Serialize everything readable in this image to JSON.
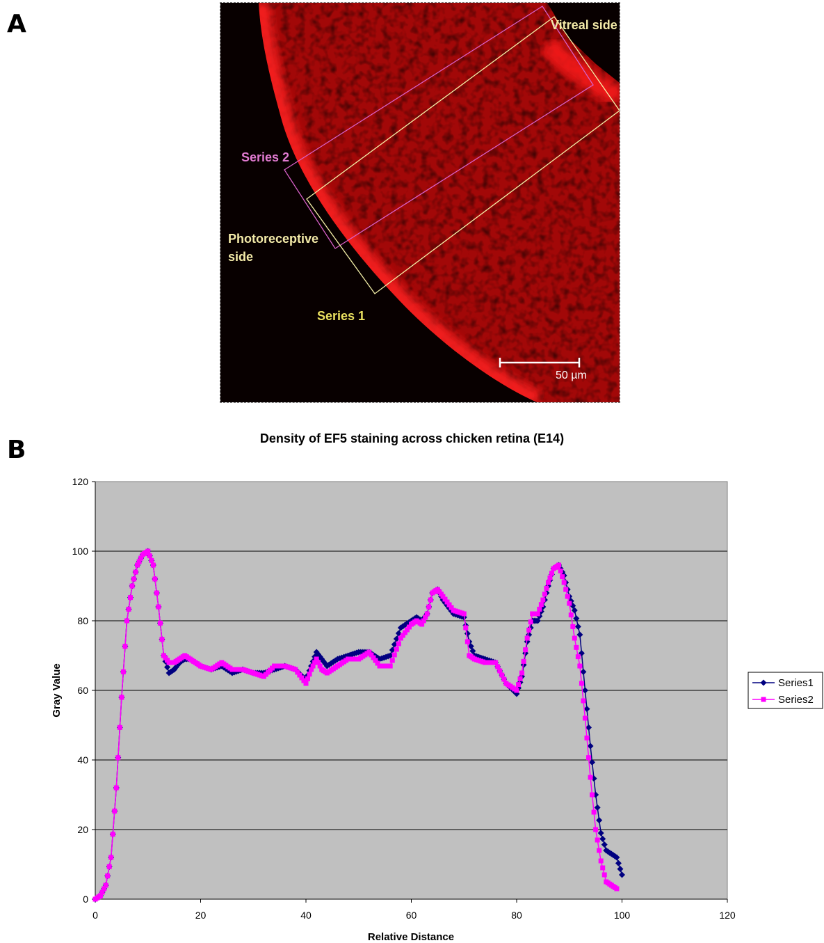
{
  "panels": {
    "a_letter": "A",
    "b_letter": "B"
  },
  "micrograph": {
    "label_vitreal": "Vitreal side",
    "label_series2": "Series 2",
    "label_photoreceptive_line1": "Photoreceptive",
    "label_photoreceptive_line2": "side",
    "label_series1": "Series 1",
    "scale_bar_label": "50 µm",
    "colors": {
      "stain": "#e01010",
      "background": "#080000",
      "box_series1": "#f4f0a8",
      "box_series2": "#d860c8"
    }
  },
  "chart_data": {
    "type": "line",
    "title": "Density of EF5 staining across chicken retina (E14)",
    "xlabel": "Relative Distance",
    "ylabel": "Gray Value",
    "xlim": [
      0,
      120
    ],
    "ylim": [
      0,
      120
    ],
    "xticks": [
      "0",
      "20",
      "40",
      "60",
      "80",
      "100",
      "120"
    ],
    "yticks": [
      "0",
      "20",
      "40",
      "60",
      "80",
      "100",
      "120"
    ],
    "grid": "horizontal",
    "plot_background": "#c0c0c0",
    "legend_position": "right",
    "series": [
      {
        "name": "Series1",
        "color": "#000080",
        "marker": "diamond",
        "points": [
          [
            0,
            0
          ],
          [
            1,
            1
          ],
          [
            2,
            4
          ],
          [
            3,
            12
          ],
          [
            4,
            32
          ],
          [
            5,
            58
          ],
          [
            6,
            80
          ],
          [
            7,
            90
          ],
          [
            8,
            96
          ],
          [
            9,
            99
          ],
          [
            10,
            100
          ],
          [
            11,
            96
          ],
          [
            12,
            84
          ],
          [
            13,
            70
          ],
          [
            14,
            65
          ],
          [
            15,
            66
          ],
          [
            16,
            68
          ],
          [
            17,
            69
          ],
          [
            18,
            69
          ],
          [
            19,
            68
          ],
          [
            20,
            67
          ],
          [
            22,
            66
          ],
          [
            24,
            67
          ],
          [
            26,
            65
          ],
          [
            28,
            66
          ],
          [
            30,
            65
          ],
          [
            32,
            65
          ],
          [
            34,
            66
          ],
          [
            36,
            67
          ],
          [
            38,
            66
          ],
          [
            40,
            63
          ],
          [
            41,
            67
          ],
          [
            42,
            71
          ],
          [
            43,
            69
          ],
          [
            44,
            67
          ],
          [
            46,
            69
          ],
          [
            48,
            70
          ],
          [
            50,
            71
          ],
          [
            52,
            71
          ],
          [
            54,
            69
          ],
          [
            56,
            70
          ],
          [
            58,
            78
          ],
          [
            60,
            80
          ],
          [
            61,
            81
          ],
          [
            62,
            80
          ],
          [
            63,
            82
          ],
          [
            64,
            88
          ],
          [
            65,
            89
          ],
          [
            66,
            86
          ],
          [
            68,
            82
          ],
          [
            70,
            81
          ],
          [
            71,
            74
          ],
          [
            72,
            70
          ],
          [
            74,
            69
          ],
          [
            76,
            68
          ],
          [
            78,
            62
          ],
          [
            80,
            59
          ],
          [
            81,
            64
          ],
          [
            82,
            74
          ],
          [
            83,
            80
          ],
          [
            84,
            80
          ],
          [
            85,
            84
          ],
          [
            86,
            90
          ],
          [
            87,
            95
          ],
          [
            88,
            96
          ],
          [
            89,
            93
          ],
          [
            90,
            87
          ],
          [
            91,
            83
          ],
          [
            92,
            76
          ],
          [
            93,
            60
          ],
          [
            94,
            44
          ],
          [
            95,
            30
          ],
          [
            96,
            19
          ],
          [
            97,
            14
          ],
          [
            98,
            13
          ],
          [
            99,
            12
          ],
          [
            100,
            7
          ]
        ]
      },
      {
        "name": "Series2",
        "color": "#ff00ff",
        "marker": "square",
        "points": [
          [
            0,
            0
          ],
          [
            1,
            1
          ],
          [
            2,
            4
          ],
          [
            3,
            12
          ],
          [
            4,
            32
          ],
          [
            5,
            58
          ],
          [
            6,
            80
          ],
          [
            7,
            90
          ],
          [
            8,
            96
          ],
          [
            9,
            99
          ],
          [
            10,
            100
          ],
          [
            11,
            96
          ],
          [
            12,
            84
          ],
          [
            13,
            70
          ],
          [
            14,
            68
          ],
          [
            15,
            68
          ],
          [
            16,
            69
          ],
          [
            17,
            70
          ],
          [
            18,
            69
          ],
          [
            19,
            68
          ],
          [
            20,
            67
          ],
          [
            22,
            66
          ],
          [
            24,
            68
          ],
          [
            26,
            66
          ],
          [
            28,
            66
          ],
          [
            30,
            65
          ],
          [
            32,
            64
          ],
          [
            34,
            67
          ],
          [
            36,
            67
          ],
          [
            38,
            66
          ],
          [
            40,
            62
          ],
          [
            41,
            66
          ],
          [
            42,
            69
          ],
          [
            43,
            66
          ],
          [
            44,
            65
          ],
          [
            46,
            67
          ],
          [
            48,
            69
          ],
          [
            50,
            69
          ],
          [
            52,
            71
          ],
          [
            54,
            67
          ],
          [
            56,
            67
          ],
          [
            58,
            75
          ],
          [
            60,
            79
          ],
          [
            61,
            80
          ],
          [
            62,
            79
          ],
          [
            63,
            82
          ],
          [
            64,
            88
          ],
          [
            65,
            89
          ],
          [
            66,
            87
          ],
          [
            68,
            83
          ],
          [
            70,
            82
          ],
          [
            71,
            70
          ],
          [
            72,
            69
          ],
          [
            74,
            68
          ],
          [
            76,
            68
          ],
          [
            78,
            62
          ],
          [
            80,
            60
          ],
          [
            81,
            65
          ],
          [
            82,
            75
          ],
          [
            83,
            82
          ],
          [
            84,
            82
          ],
          [
            85,
            86
          ],
          [
            86,
            91
          ],
          [
            87,
            95
          ],
          [
            88,
            96
          ],
          [
            89,
            91
          ],
          [
            90,
            85
          ],
          [
            91,
            75
          ],
          [
            92,
            67
          ],
          [
            93,
            52
          ],
          [
            94,
            35
          ],
          [
            95,
            20
          ],
          [
            96,
            11
          ],
          [
            97,
            5
          ],
          [
            98,
            4
          ],
          [
            99,
            3
          ]
        ]
      }
    ]
  }
}
